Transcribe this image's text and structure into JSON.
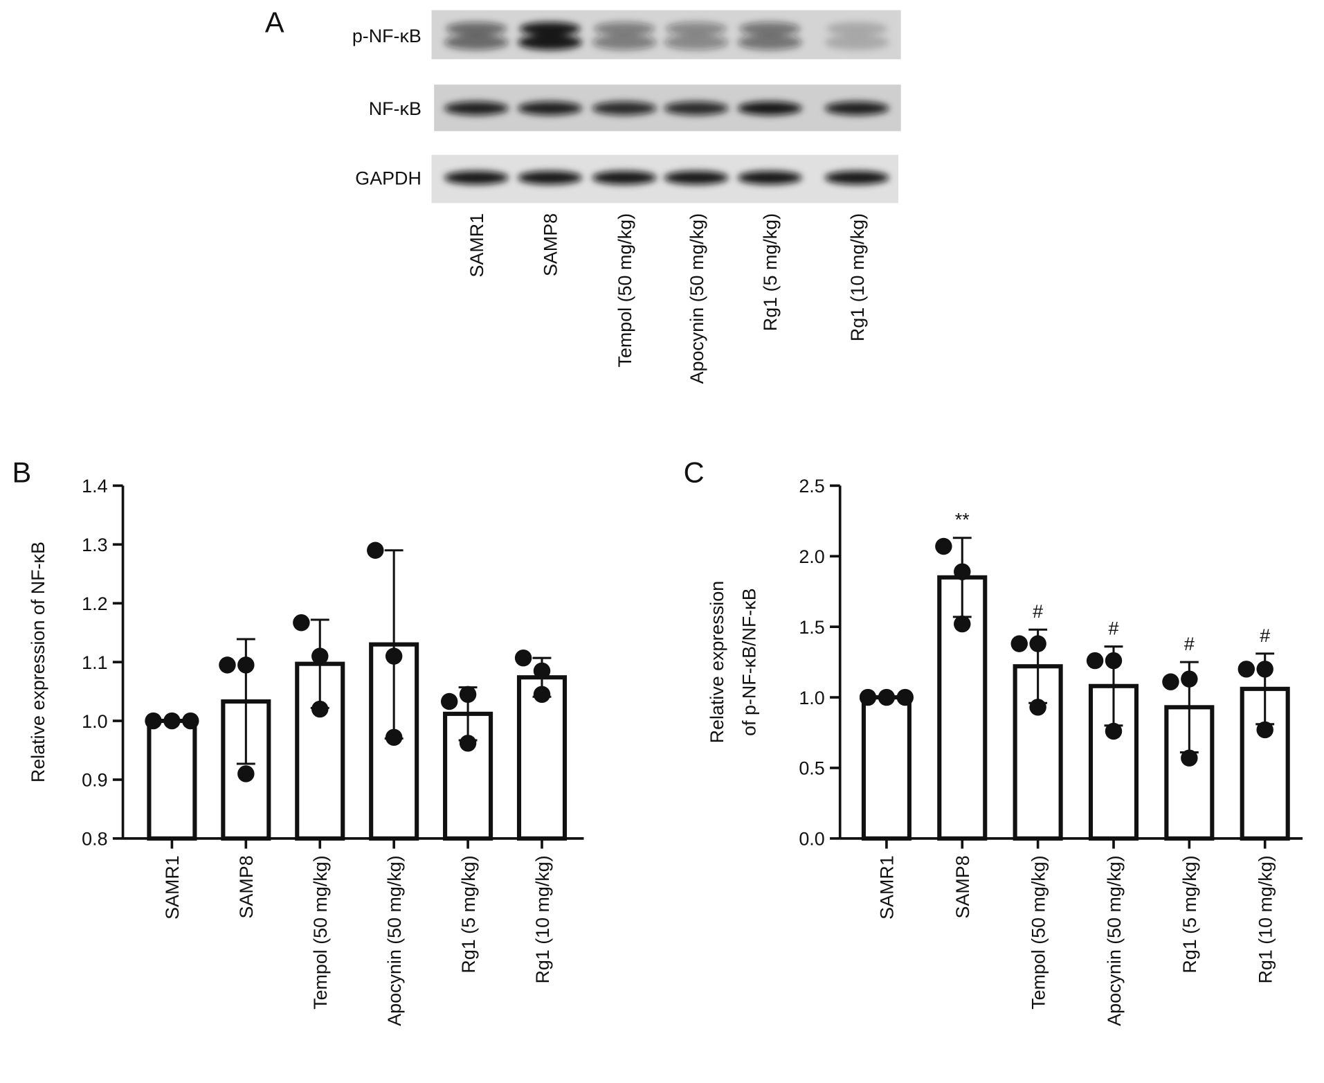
{
  "panel_a": {
    "label": "A",
    "rows": [
      "p-NF-κB",
      "NF-κB",
      "GAPDH"
    ],
    "lanes": [
      "SAMR1",
      "SAMP8",
      "Tempol (50 mg/kg)",
      "Apocynin (50 mg/kg)",
      "Rg1 (5 mg/kg)",
      "Rg1 (10 mg/kg)"
    ]
  },
  "chart_data": [
    {
      "type": "bar",
      "panel": "B",
      "y_label": [
        "Relative expression of NF-κB"
      ],
      "categories": [
        "SAMR1",
        "SAMP8",
        "Tempol (50 mg/kg)",
        "Apocynin (50 mg/kg)",
        "Rg1 (5 mg/kg)",
        "Rg1 (10 mg/kg)"
      ],
      "values": [
        1.0,
        1.033,
        1.097,
        1.13,
        1.012,
        1.074
      ],
      "errors": [
        0,
        0.106,
        0.075,
        0.16,
        0.045,
        0.033
      ],
      "points": [
        [
          1.0,
          1.0,
          1.0
        ],
        [
          1.095,
          1.095,
          0.91
        ],
        [
          1.167,
          1.11,
          1.02
        ],
        [
          1.29,
          1.11,
          0.972
        ],
        [
          1.033,
          1.045,
          0.962
        ],
        [
          1.107,
          1.085,
          1.045
        ]
      ],
      "color": "#ffffff",
      "ylim": [
        0.8,
        1.4
      ],
      "yticks": [
        0.8,
        0.9,
        {
          "value": 1,
          "label": "1.0"
        },
        1.1,
        1.2,
        1.3,
        1.4
      ]
    },
    {
      "type": "bar",
      "panel": "C",
      "y_label": [
        "Relative expression",
        "of p-NF-κB/NF-κB"
      ],
      "categories": [
        "SAMR1",
        "SAMP8",
        "Tempol (50 mg/kg)",
        "Apocynin (50 mg/kg)",
        "Rg1 (5 mg/kg)",
        "Rg1 (10 mg/kg)"
      ],
      "values": [
        1.0,
        1.85,
        1.22,
        1.08,
        0.93,
        1.06
      ],
      "errors": [
        0,
        0.28,
        0.26,
        0.28,
        0.32,
        0.25
      ],
      "points": [
        [
          1.0,
          1.0,
          1.0
        ],
        [
          2.07,
          1.89,
          1.52
        ],
        [
          1.38,
          1.38,
          0.93
        ],
        [
          1.26,
          1.26,
          0.76
        ],
        [
          1.11,
          1.13,
          0.57
        ],
        [
          1.2,
          1.2,
          0.77
        ]
      ],
      "annotations": [
        null,
        "**",
        "#",
        "#",
        "#",
        "#"
      ],
      "color": "#ffffff",
      "ylim": [
        0,
        2.5
      ],
      "yticks": [
        {
          "value": 0,
          "label": "0.0"
        },
        0.5,
        {
          "value": 1,
          "label": "1.0"
        },
        1.5,
        {
          "value": 2,
          "label": "2.0"
        },
        2.5
      ]
    }
  ]
}
